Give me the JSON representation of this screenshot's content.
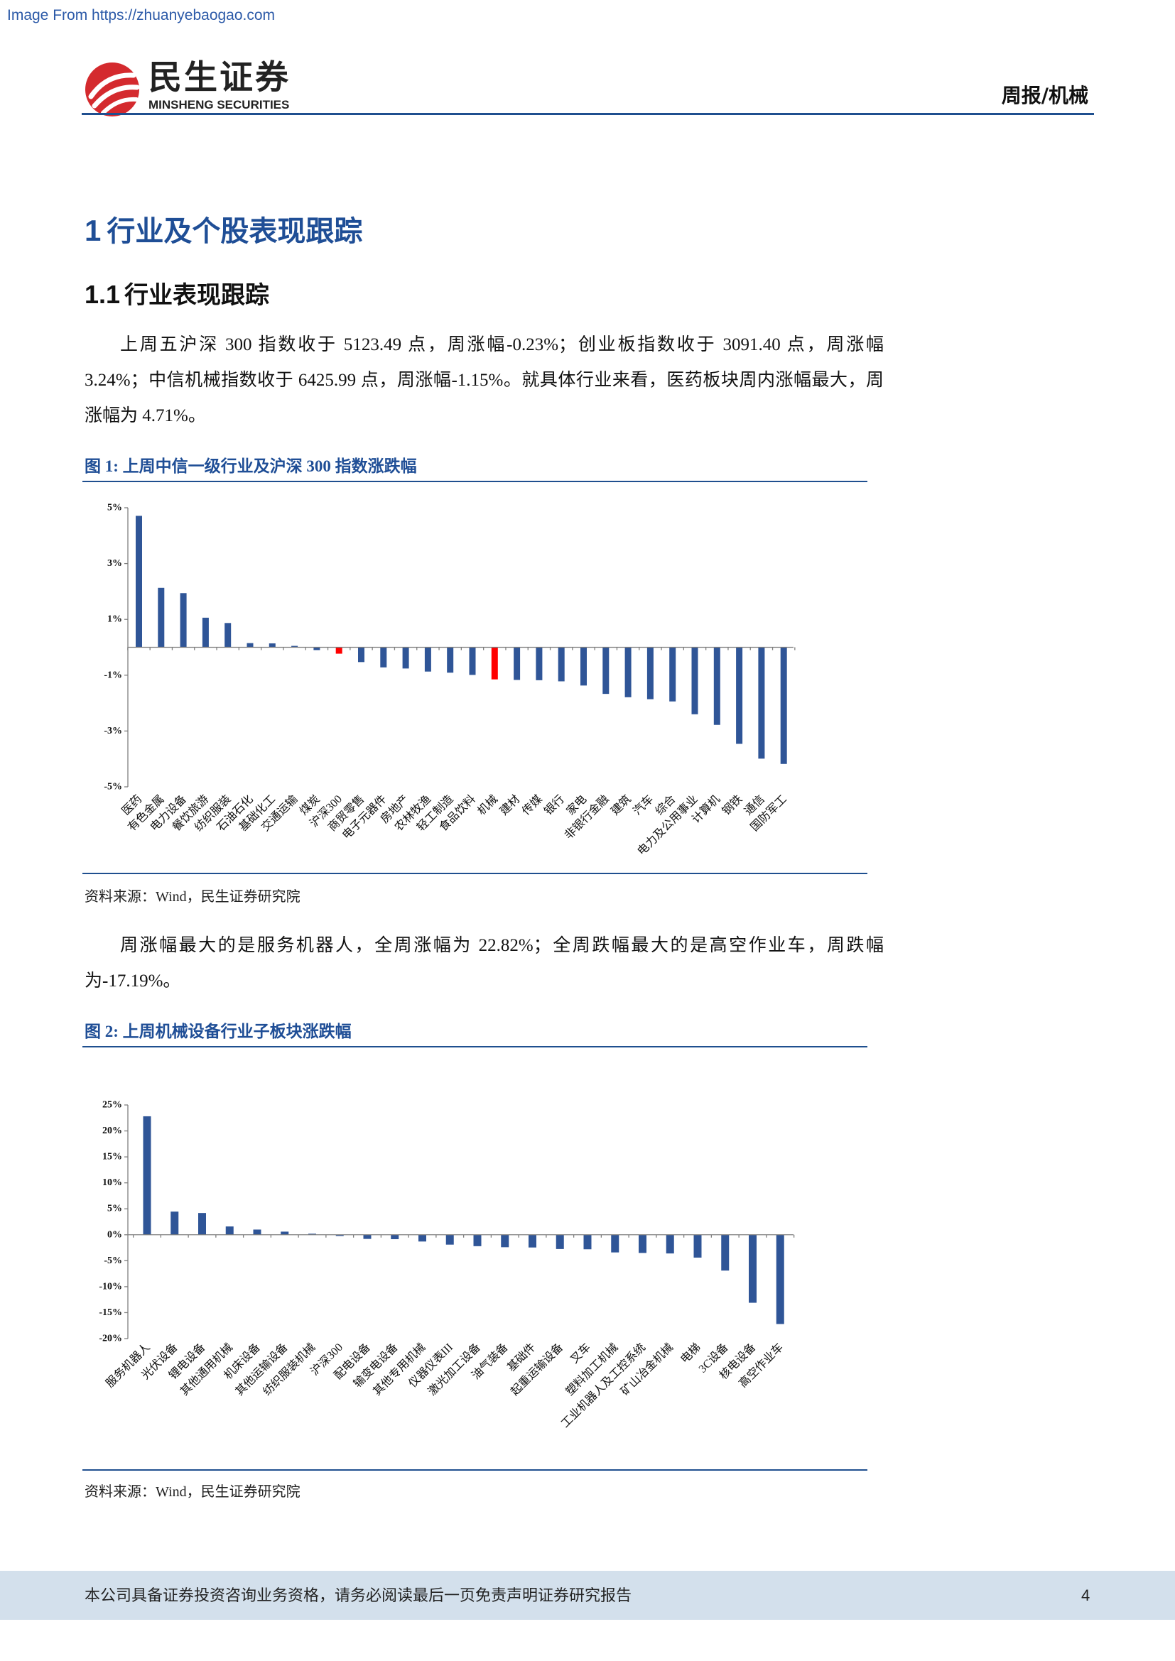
{
  "watermark": "Image From https://zhuanyebaogao.com",
  "header": {
    "logo_cn": "民生证券",
    "logo_en": "MINSHENG SECURITIES",
    "report_type": "周报/机械"
  },
  "theme": {
    "accent_blue": "#1f4e96",
    "rule_blue": "#1f4f8f",
    "brand_red": "#d42a2e",
    "footer_band": "#d3e0ec",
    "link_blue": "#2c5aa8"
  },
  "section": {
    "title_num": "1",
    "title_text": "行业及个股表现跟踪",
    "sub_num": "1.1",
    "sub_text": "行业表现跟踪"
  },
  "paragraphs": [
    "上周五沪深 300 指数收于 5123.49 点，周涨幅-0.23%；创业板指数收于 3091.40 点，周涨幅 3.24%；中信机械指数收于 6425.99 点，周涨幅-1.15%。就具体行业来看，医药板块周内涨幅最大，周涨幅为 4.71%。",
    "周涨幅最大的是服务机器人，全周涨幅为 22.82%；全周跌幅最大的是高空作业车，周跌幅为-17.19%。"
  ],
  "chart_data": [
    {
      "type": "bar",
      "title": "图 1: 上周中信一级行业及沪深 300 指数涨跌幅",
      "source": "资料来源：Wind，民生证券研究院",
      "categories": [
        "医药",
        "有色金属",
        "电力设备",
        "餐饮旅游",
        "纺织服装",
        "石油石化",
        "基础化工",
        "交通运输",
        "煤炭",
        "沪深300",
        "商贸零售",
        "电子元器件",
        "房地产",
        "农林牧渔",
        "轻工制造",
        "食品饮料",
        "机械",
        "建材",
        "传媒",
        "银行",
        "家电",
        "非银行金融",
        "建筑",
        "汽车",
        "综合",
        "电力及公用事业",
        "计算机",
        "钢铁",
        "通信",
        "国防军工"
      ],
      "values": [
        4.71,
        2.13,
        1.94,
        1.06,
        0.87,
        0.15,
        0.14,
        0.05,
        -0.1,
        -0.23,
        -0.53,
        -0.72,
        -0.76,
        -0.87,
        -0.91,
        -0.99,
        -1.15,
        -1.17,
        -1.18,
        -1.22,
        -1.37,
        -1.67,
        -1.79,
        -1.86,
        -1.94,
        -2.4,
        -2.78,
        -3.46,
        -3.99,
        -4.18
      ],
      "ylim": [
        -5,
        5
      ],
      "yticks": [
        {
          "value": 5,
          "label": "5%"
        },
        {
          "value": 3,
          "label": "3%"
        },
        {
          "value": 1,
          "label": "1%"
        },
        {
          "value": -1,
          "label": "-1%"
        },
        {
          "value": -3,
          "label": "-3%"
        },
        {
          "value": -5,
          "label": "-5%"
        }
      ],
      "bar_color": "#2f5597",
      "highlight_color": "#ff0000",
      "highlight_index": [
        9,
        16
      ],
      "grid": false,
      "legend": "none"
    },
    {
      "type": "bar",
      "title": "图 2: 上周机械设备行业子板块涨跌幅",
      "source": "资料来源：Wind，民生证券研究院",
      "categories": [
        "服务机器人",
        "光伏设备",
        "锂电设备",
        "其他通用机械",
        "机床设备",
        "其他运输设备",
        "纺织服装机械",
        "沪深300",
        "配电设备",
        "输变电设备",
        "其他专用机械",
        "仪器仪表III",
        "激光加工设备",
        "油气装备",
        "基础件",
        "起重运输设备",
        "叉车",
        "塑料加工机械",
        "工业机器人及工控系统",
        "矿山冶金机械",
        "电梯",
        "3C设备",
        "核电设备",
        "高空作业车"
      ],
      "values": [
        22.82,
        4.46,
        4.19,
        1.6,
        1.0,
        0.6,
        0.2,
        -0.23,
        -0.8,
        -0.85,
        -1.3,
        -1.9,
        -2.2,
        -2.4,
        -2.45,
        -2.75,
        -2.8,
        -3.4,
        -3.5,
        -3.6,
        -4.4,
        -6.9,
        -13.1,
        -17.19
      ],
      "ylim": [
        -20,
        25
      ],
      "yticks": [
        {
          "value": 25,
          "label": "25%"
        },
        {
          "value": 20,
          "label": "20%"
        },
        {
          "value": 15,
          "label": "15%"
        },
        {
          "value": 10,
          "label": "10%"
        },
        {
          "value": 5,
          "label": "5%"
        },
        {
          "value": 0,
          "label": "0%"
        },
        {
          "value": -5,
          "label": "-5%"
        },
        {
          "value": -10,
          "label": "-10%"
        },
        {
          "value": -15,
          "label": "-15%"
        },
        {
          "value": -20,
          "label": "-20%"
        }
      ],
      "bar_color": "#2f5597",
      "highlight_color": "#ff0000",
      "highlight_index": [],
      "grid": false,
      "legend": "none"
    }
  ],
  "footer": {
    "disclaimer": "本公司具备证券投资咨询业务资格，请务必阅读最后一页免责声明证券研究报告",
    "page_number": "4"
  }
}
